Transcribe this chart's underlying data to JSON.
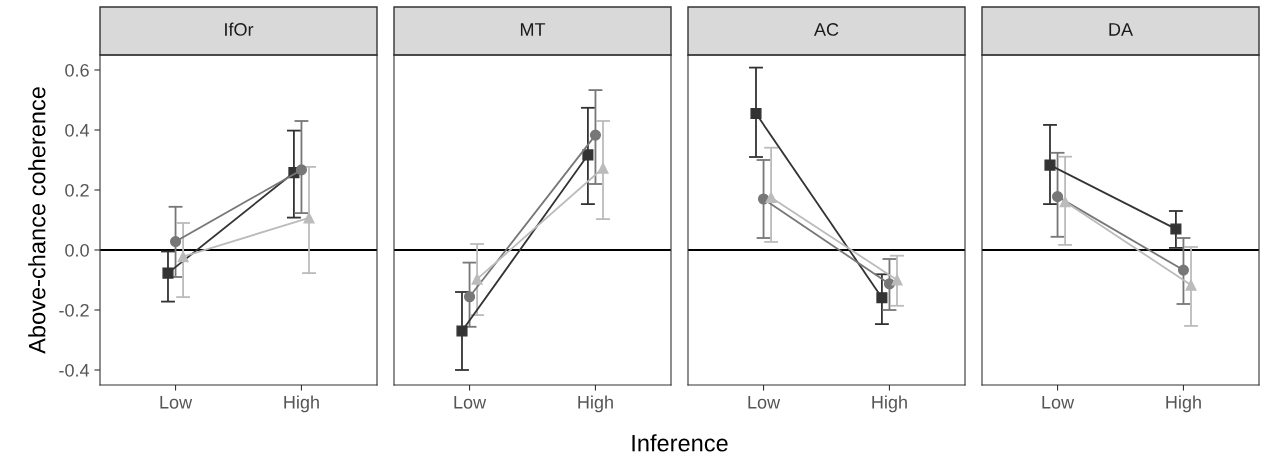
{
  "chart_data": [
    {
      "type": "line",
      "title": "IfOr",
      "ylabel": "Above-chance coherence",
      "categories": [
        "Low",
        "High"
      ],
      "ylim": [
        -0.45,
        0.65
      ],
      "yticks": [
        {
          "value": -0.4,
          "label": "-0.4"
        },
        {
          "value": -0.2,
          "label": "-0.2"
        },
        {
          "value": 0,
          "label": "0.0"
        },
        {
          "value": 0.2,
          "label": "0.2"
        },
        {
          "value": 0.4,
          "label": "0.4"
        },
        {
          "value": 0.6,
          "label": "0.6"
        }
      ],
      "ref_lines": [
        {
          "axis": "y",
          "value": 0,
          "color": "#000000"
        }
      ],
      "series": [
        {
          "color": "#333333",
          "marker": "square",
          "values": [
            -0.077,
            0.258
          ],
          "errors": [
            [
              -0.172,
              -0.005
            ],
            [
              0.108,
              0.398
            ]
          ]
        },
        {
          "color": "#777777",
          "marker": "circle",
          "values": [
            0.028,
            0.267
          ],
          "errors": [
            [
              -0.09,
              0.144
            ],
            [
              0.123,
              0.43
            ]
          ]
        },
        {
          "color": "#bbbbbb",
          "marker": "triangle",
          "values": [
            -0.022,
            0.107
          ],
          "errors": [
            [
              -0.157,
              0.09
            ],
            [
              -0.077,
              0.277
            ]
          ]
        }
      ]
    },
    {
      "type": "line",
      "title": "MT",
      "categories": [
        "Low",
        "High"
      ],
      "ylim": [
        -0.45,
        0.65
      ],
      "tick_labels": "x",
      "ref_lines": [
        {
          "axis": "y",
          "value": 0,
          "color": "#000000"
        }
      ],
      "series": [
        {
          "color": "#333333",
          "marker": "square",
          "values": [
            -0.27,
            0.317
          ],
          "errors": [
            [
              -0.4,
              -0.14
            ],
            [
              0.153,
              0.474
            ]
          ]
        },
        {
          "color": "#777777",
          "marker": "circle",
          "values": [
            -0.156,
            0.383
          ],
          "errors": [
            [
              -0.256,
              -0.042
            ],
            [
              0.22,
              0.533
            ]
          ]
        },
        {
          "color": "#bbbbbb",
          "marker": "triangle",
          "values": [
            -0.097,
            0.273
          ],
          "errors": [
            [
              -0.217,
              0.02
            ],
            [
              0.103,
              0.43
            ]
          ]
        }
      ]
    },
    {
      "type": "line",
      "title": "AC",
      "categories": [
        "Low",
        "High"
      ],
      "ylim": [
        -0.45,
        0.65
      ],
      "tick_labels": "x",
      "ref_lines": [
        {
          "axis": "y",
          "value": 0,
          "color": "#000000"
        }
      ],
      "series": [
        {
          "color": "#333333",
          "marker": "square",
          "values": [
            0.455,
            -0.159
          ],
          "errors": [
            [
              0.31,
              0.608
            ],
            [
              -0.247,
              -0.081
            ]
          ]
        },
        {
          "color": "#777777",
          "marker": "circle",
          "values": [
            0.17,
            -0.113
          ],
          "errors": [
            [
              0.04,
              0.3
            ],
            [
              -0.2,
              -0.03
            ]
          ]
        },
        {
          "color": "#bbbbbb",
          "marker": "triangle",
          "values": [
            0.175,
            -0.1
          ],
          "errors": [
            [
              0.027,
              0.341
            ],
            [
              -0.186,
              -0.019
            ]
          ]
        }
      ]
    },
    {
      "type": "line",
      "title": "DA",
      "categories": [
        "Low",
        "High"
      ],
      "ylim": [
        -0.45,
        0.65
      ],
      "tick_labels": "x",
      "ref_lines": [
        {
          "axis": "y",
          "value": 0,
          "color": "#000000"
        }
      ],
      "series": [
        {
          "color": "#333333",
          "marker": "square",
          "values": [
            0.283,
            0.07
          ],
          "errors": [
            [
              0.153,
              0.417
            ],
            [
              0.007,
              0.13
            ]
          ]
        },
        {
          "color": "#777777",
          "marker": "circle",
          "values": [
            0.178,
            -0.067
          ],
          "errors": [
            [
              0.044,
              0.324
            ],
            [
              -0.18,
              0.04
            ]
          ]
        },
        {
          "color": "#bbbbbb",
          "marker": "triangle",
          "values": [
            0.161,
            -0.117
          ],
          "errors": [
            [
              0.017,
              0.311
            ],
            [
              -0.253,
              0.01
            ]
          ]
        }
      ]
    },
    {
      "type": "other",
      "annotations": [
        "Inference"
      ]
    }
  ]
}
